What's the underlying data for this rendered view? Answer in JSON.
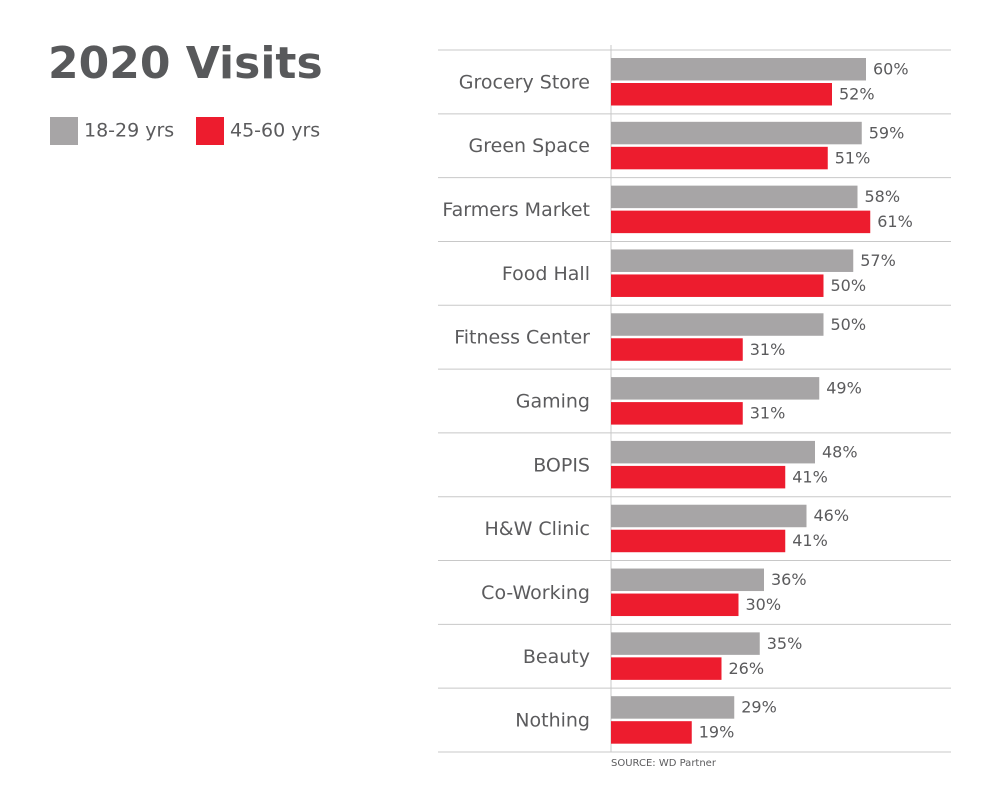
{
  "chart_data": {
    "type": "bar",
    "orientation": "horizontal",
    "title": "2020 Visits",
    "source": "SOURCE: WD Partner",
    "categories": [
      "Grocery Store",
      "Green Space",
      "Farmers Market",
      "Food Hall",
      "Fitness Center",
      "Gaming",
      "BOPIS",
      "H&W Clinic",
      "Co-Working",
      "Beauty",
      "Nothing"
    ],
    "series": [
      {
        "name": "18-29 yrs",
        "color": "#a7a5a6",
        "values": [
          60,
          59,
          58,
          57,
          50,
          49,
          48,
          46,
          36,
          35,
          29
        ],
        "value_labels": [
          "60%",
          "59%",
          "58%",
          "57%",
          "50%",
          "49%",
          "48%",
          "46%",
          "36%",
          "35%",
          "29%"
        ]
      },
      {
        "name": "45-60 yrs",
        "color": "#ed1c2e",
        "values": [
          52,
          51,
          61,
          50,
          31,
          31,
          41,
          41,
          30,
          26,
          19
        ],
        "value_labels": [
          "52%",
          "51%",
          "61%",
          "50%",
          "31%",
          "31%",
          "41%",
          "41%",
          "30%",
          "26%",
          "19%"
        ]
      }
    ],
    "xlim": [
      0,
      80
    ]
  }
}
